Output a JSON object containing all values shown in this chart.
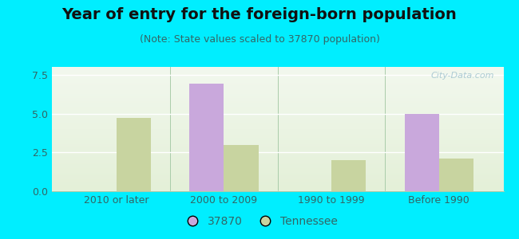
{
  "title": "Year of entry for the foreign-born population",
  "subtitle": "(Note: State values scaled to 37870 population)",
  "categories": [
    "2010 or later",
    "2000 to 2009",
    "1990 to 1999",
    "Before 1990"
  ],
  "series_37870": [
    0,
    6.9,
    0,
    5.0
  ],
  "series_tennessee": [
    4.7,
    3.0,
    2.0,
    2.1
  ],
  "color_37870": "#c9a8dc",
  "color_tennessee": "#c8d4a0",
  "ylim": [
    0,
    8.0
  ],
  "yticks": [
    0,
    2.5,
    5,
    7.5
  ],
  "background_outer": "#00eeff",
  "background_inner_colors": [
    "#f2f8ee",
    "#e4f0d8"
  ],
  "title_fontsize": 14,
  "subtitle_fontsize": 9,
  "tick_fontsize": 9,
  "legend_label_37870": "37870",
  "legend_label_tennessee": "Tennessee",
  "bar_width": 0.32,
  "watermark": "City-Data.com"
}
